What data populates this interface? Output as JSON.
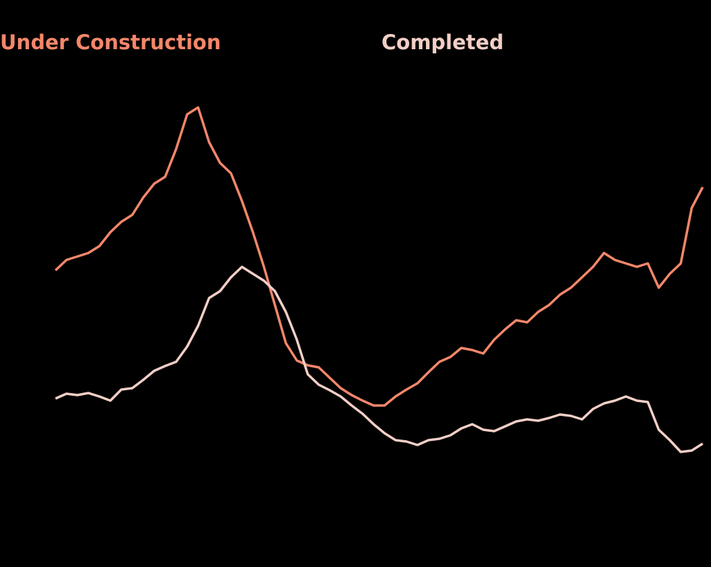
{
  "chart_data": {
    "type": "line",
    "categories": [
      null,
      null,
      null,
      null,
      null,
      null,
      null,
      null,
      null,
      null,
      null,
      null,
      null,
      null,
      null,
      null,
      null,
      null,
      null,
      null,
      null,
      null,
      null,
      null,
      null,
      null,
      null,
      null,
      null,
      null,
      null,
      null,
      null,
      null,
      null,
      null,
      null,
      null,
      null,
      null,
      null,
      null,
      null,
      null,
      null,
      null,
      null,
      null,
      null,
      null,
      null,
      null,
      null,
      null,
      null,
      null,
      null,
      null,
      null,
      null
    ],
    "series": [
      {
        "name": "Under Construction",
        "color": "#f4876a",
        "values": [
          310,
          325,
          330,
          335,
          345,
          365,
          380,
          390,
          415,
          435,
          445,
          485,
          535,
          545,
          495,
          465,
          450,
          410,
          365,
          315,
          260,
          205,
          180,
          173,
          170,
          155,
          140,
          130,
          122,
          115,
          115,
          128,
          138,
          147,
          163,
          178,
          185,
          198,
          195,
          190,
          210,
          225,
          238,
          235,
          250,
          260,
          275,
          285,
          300,
          315,
          335,
          325,
          320,
          315,
          320,
          285,
          305,
          320,
          400,
          430
        ]
      },
      {
        "name": "Completed",
        "color": "#f2cfc6",
        "values": [
          125,
          132,
          130,
          133,
          128,
          122,
          138,
          140,
          152,
          165,
          172,
          178,
          200,
          230,
          270,
          280,
          300,
          315,
          305,
          295,
          280,
          250,
          210,
          160,
          145,
          137,
          128,
          115,
          103,
          88,
          75,
          65,
          63,
          58,
          65,
          67,
          72,
          82,
          88,
          80,
          78,
          85,
          92,
          95,
          93,
          97,
          102,
          100,
          95,
          110,
          118,
          122,
          128,
          122,
          120,
          80,
          65,
          48,
          50,
          60
        ]
      }
    ],
    "ylim": [
      0,
      600
    ]
  }
}
